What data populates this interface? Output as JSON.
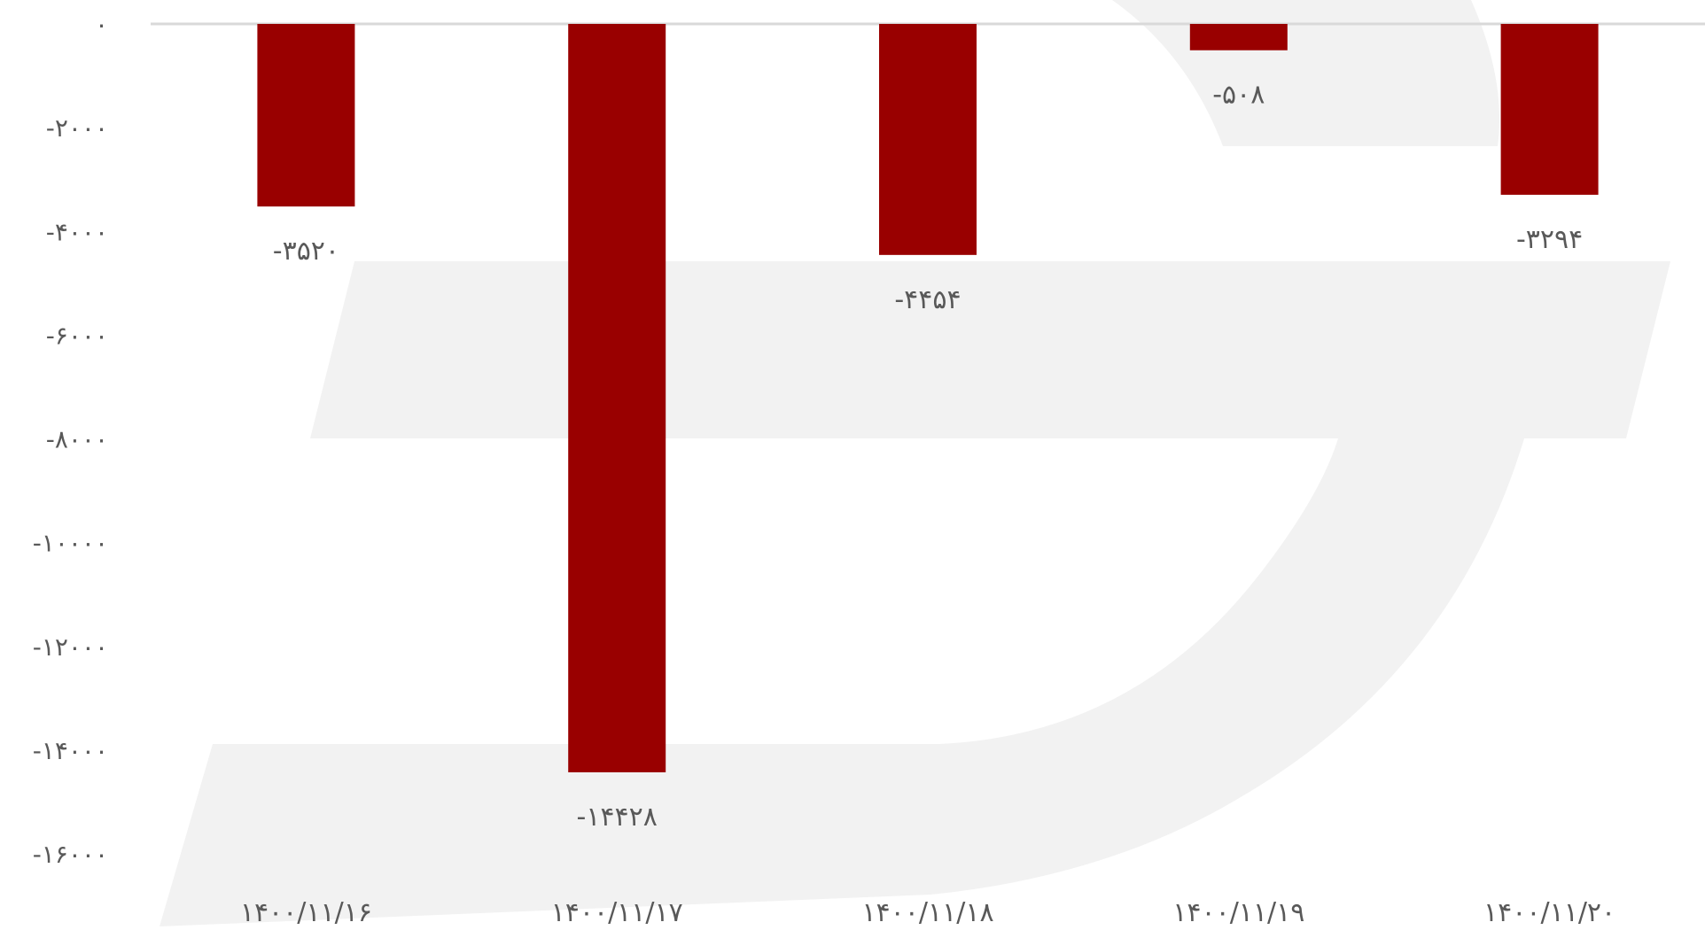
{
  "chart_data": {
    "type": "bar",
    "title": "",
    "xlabel": "",
    "ylabel": "",
    "categories": [
      "۱۴۰۰/۱۱/۱۶",
      "۱۴۰۰/۱۱/۱۷",
      "۱۴۰۰/۱۱/۱۸",
      "۱۴۰۰/۱۱/۱۹",
      "۱۴۰۰/۱۱/۲۰"
    ],
    "values": [
      -3520,
      -14428,
      -4454,
      -508,
      -3294
    ],
    "value_labels": [
      "-۳۵۲۰",
      "-۱۴۴۲۸",
      "-۴۴۵۴",
      "-۵۰۸",
      "-۳۲۹۴"
    ],
    "ylim": [
      -16000,
      0
    ],
    "y_ticks": [
      0,
      -2000,
      -4000,
      -6000,
      -8000,
      -10000,
      -12000,
      -14000,
      -16000
    ],
    "y_tick_labels": [
      "۰",
      "-۲۰۰۰",
      "-۴۰۰۰",
      "-۶۰۰۰",
      "-۸۰۰۰",
      "-۱۰۰۰۰",
      "-۱۲۰۰۰",
      "-۱۴۰۰۰",
      "-۱۶۰۰۰"
    ],
    "grid": false,
    "legend": "none",
    "colors": {
      "bar": "#990000",
      "axis": "#d9d9d9",
      "text": "#595959",
      "watermark": "#f2f2f2"
    }
  }
}
